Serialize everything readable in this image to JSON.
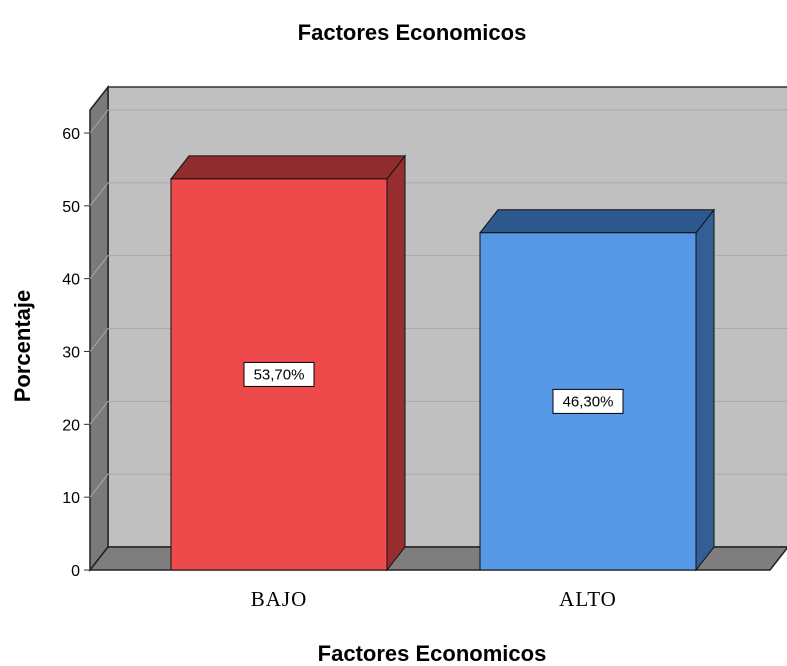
{
  "chart_data": {
    "type": "bar",
    "title": "Factores Economicos",
    "xlabel": "Factores Economicos",
    "ylabel": "Porcentaje",
    "categories": [
      "BAJO",
      "ALTO"
    ],
    "values": [
      53.7,
      46.3
    ],
    "data_labels": [
      "53,70%",
      "46,30%"
    ],
    "ylim": [
      0,
      60
    ],
    "yticks": [
      "0",
      "10",
      "20",
      "30",
      "40",
      "50",
      "60"
    ],
    "grid": true,
    "style": "3d",
    "colors": {
      "bars": [
        "#ee4a4c",
        "#5697e6"
      ],
      "bar_tops": [
        "#8f2c2d",
        "#2e598f"
      ],
      "bar_sides": [
        "#962e30",
        "#335f96"
      ],
      "plot_back": "#c0c0c0",
      "plot_wall": "#7a7a7a",
      "plot_floor": "#7e7e7e",
      "grid": "#a9a9a9"
    }
  }
}
